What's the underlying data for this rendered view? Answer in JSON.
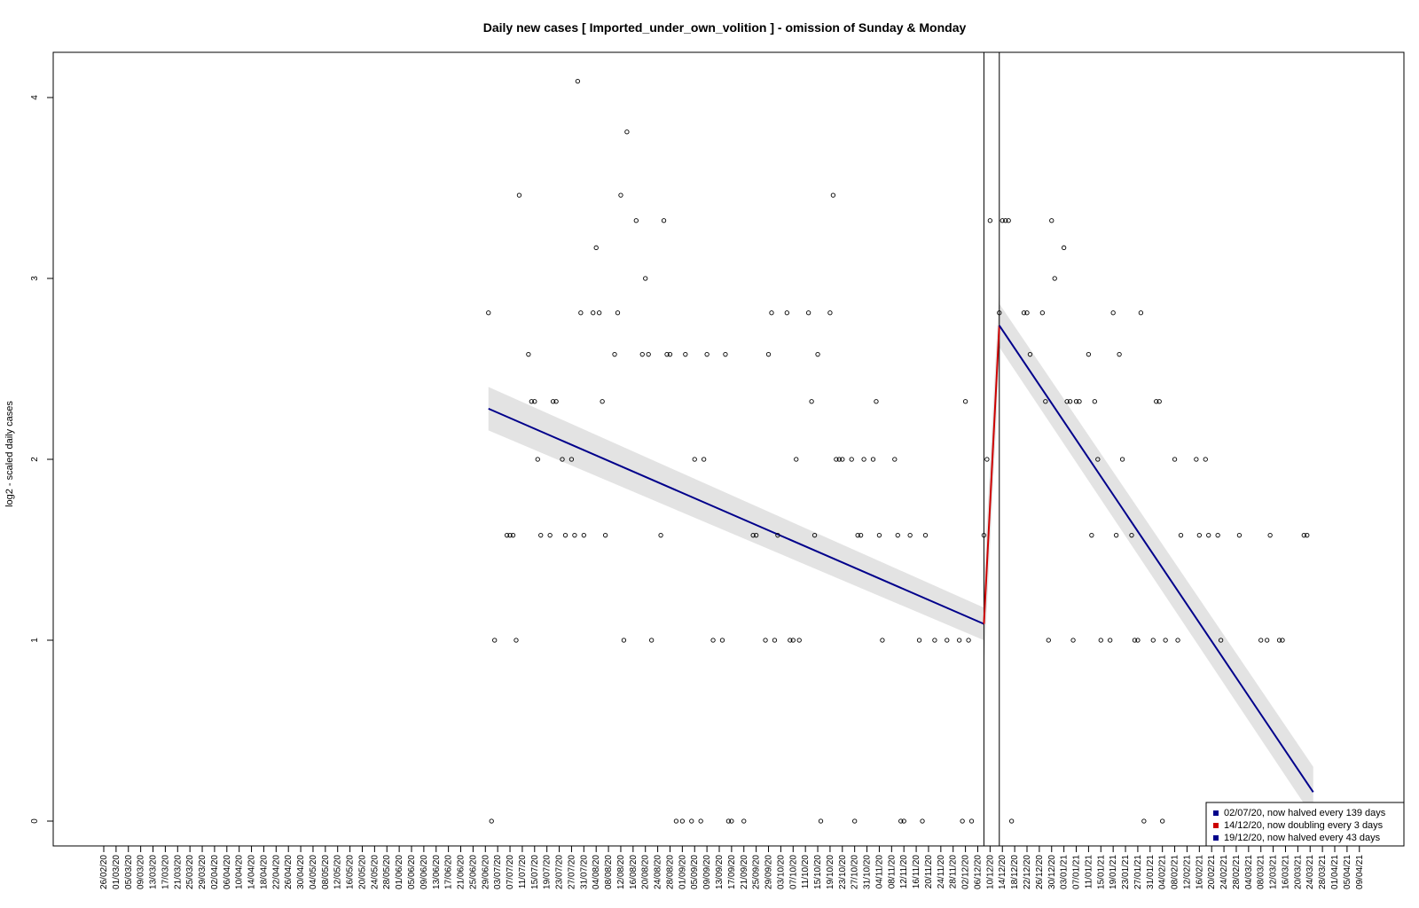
{
  "chart_data": {
    "type": "scatter",
    "title": "Daily new cases [ Imported_under_own_volition ] - omission of Sunday & Monday",
    "xlabel": "",
    "ylabel": "log2 - scaled daily cases",
    "ylim": [
      0,
      4
    ],
    "yticks": [
      "0",
      "1",
      "2",
      "3",
      "4"
    ],
    "x_tick_labels": [
      "26/02/20",
      "01/03/20",
      "05/03/20",
      "09/03/20",
      "13/03/20",
      "17/03/20",
      "21/03/20",
      "25/03/20",
      "29/03/20",
      "02/04/20",
      "06/04/20",
      "10/04/20",
      "14/04/20",
      "18/04/20",
      "22/04/20",
      "26/04/20",
      "30/04/20",
      "04/05/20",
      "08/05/20",
      "12/05/20",
      "16/05/20",
      "20/05/20",
      "24/05/20",
      "28/05/20",
      "01/06/20",
      "05/06/20",
      "09/06/20",
      "13/06/20",
      "17/06/20",
      "21/06/20",
      "25/06/20",
      "29/06/20",
      "03/07/20",
      "07/07/20",
      "11/07/20",
      "15/07/20",
      "19/07/20",
      "23/07/20",
      "27/07/20",
      "31/07/20",
      "04/08/20",
      "08/08/20",
      "12/08/20",
      "16/08/20",
      "20/08/20",
      "24/08/20",
      "28/08/20",
      "01/09/20",
      "05/09/20",
      "09/09/20",
      "13/09/20",
      "17/09/20",
      "21/09/20",
      "25/09/20",
      "29/09/20",
      "03/10/20",
      "07/10/20",
      "11/10/20",
      "15/10/20",
      "19/10/20",
      "23/10/20",
      "27/10/20",
      "31/10/20",
      "04/11/20",
      "08/11/20",
      "12/11/20",
      "16/11/20",
      "20/11/20",
      "24/11/20",
      "28/11/20",
      "02/12/20",
      "06/12/20",
      "10/12/20",
      "14/12/20",
      "18/12/20",
      "22/12/20",
      "26/12/20",
      "30/12/20",
      "03/01/21",
      "07/01/21",
      "11/01/21",
      "15/01/21",
      "19/01/21",
      "23/01/21",
      "27/01/21",
      "31/01/21",
      "04/02/21",
      "08/02/21",
      "12/02/21",
      "16/02/21",
      "20/02/21",
      "24/02/21",
      "28/02/21",
      "04/03/21",
      "08/03/21",
      "12/03/21",
      "16/03/21",
      "20/03/21",
      "24/03/21",
      "28/03/21",
      "01/04/21",
      "05/04/21",
      "09/04/21"
    ],
    "points": [
      [
        125,
        2.81
      ],
      [
        126,
        0
      ],
      [
        127,
        1
      ],
      [
        131,
        1.58
      ],
      [
        132,
        1.58
      ],
      [
        133,
        1.58
      ],
      [
        134,
        1
      ],
      [
        135,
        3.46
      ],
      [
        138,
        2.58
      ],
      [
        139,
        2.32
      ],
      [
        140,
        2.32
      ],
      [
        141,
        2
      ],
      [
        142,
        1.58
      ],
      [
        145,
        1.58
      ],
      [
        146,
        2.32
      ],
      [
        147,
        2.32
      ],
      [
        149,
        2
      ],
      [
        150,
        1.58
      ],
      [
        152,
        2
      ],
      [
        153,
        1.58
      ],
      [
        154,
        4.09
      ],
      [
        155,
        2.81
      ],
      [
        156,
        1.58
      ],
      [
        159,
        2.81
      ],
      [
        160,
        3.17
      ],
      [
        161,
        2.81
      ],
      [
        162,
        2.32
      ],
      [
        163,
        1.58
      ],
      [
        166,
        2.58
      ],
      [
        167,
        2.81
      ],
      [
        168,
        3.46
      ],
      [
        169,
        1
      ],
      [
        170,
        3.81
      ],
      [
        173,
        3.32
      ],
      [
        175,
        2.58
      ],
      [
        176,
        3
      ],
      [
        177,
        2.58
      ],
      [
        178,
        1
      ],
      [
        181,
        1.58
      ],
      [
        182,
        3.32
      ],
      [
        183,
        2.58
      ],
      [
        184,
        2.58
      ],
      [
        186,
        0
      ],
      [
        188,
        0
      ],
      [
        189,
        2.58
      ],
      [
        191,
        0
      ],
      [
        192,
        2
      ],
      [
        194,
        0
      ],
      [
        195,
        2
      ],
      [
        196,
        2.58
      ],
      [
        198,
        1
      ],
      [
        201,
        1
      ],
      [
        202,
        2.58
      ],
      [
        203,
        0
      ],
      [
        204,
        0
      ],
      [
        208,
        0
      ],
      [
        211,
        1.58
      ],
      [
        212,
        1.58
      ],
      [
        215,
        1
      ],
      [
        216,
        2.58
      ],
      [
        217,
        2.81
      ],
      [
        218,
        1
      ],
      [
        219,
        1.58
      ],
      [
        222,
        2.81
      ],
      [
        223,
        1
      ],
      [
        224,
        1
      ],
      [
        225,
        2
      ],
      [
        226,
        1
      ],
      [
        229,
        2.81
      ],
      [
        230,
        2.32
      ],
      [
        231,
        1.58
      ],
      [
        232,
        2.58
      ],
      [
        233,
        0
      ],
      [
        236,
        2.81
      ],
      [
        237,
        3.46
      ],
      [
        238,
        2
      ],
      [
        239,
        2
      ],
      [
        240,
        2
      ],
      [
        243,
        2
      ],
      [
        244,
        0
      ],
      [
        245,
        1.58
      ],
      [
        246,
        1.58
      ],
      [
        247,
        2
      ],
      [
        250,
        2
      ],
      [
        251,
        2.32
      ],
      [
        252,
        1.58
      ],
      [
        253,
        1
      ],
      [
        257,
        2
      ],
      [
        258,
        1.58
      ],
      [
        259,
        0
      ],
      [
        260,
        0
      ],
      [
        262,
        1.58
      ],
      [
        265,
        1
      ],
      [
        266,
        0
      ],
      [
        267,
        1.58
      ],
      [
        270,
        1
      ],
      [
        274,
        1
      ],
      [
        278,
        1
      ],
      [
        279,
        0
      ],
      [
        280,
        2.32
      ],
      [
        281,
        1
      ],
      [
        282,
        0
      ],
      [
        286,
        1.58
      ],
      [
        287,
        2
      ],
      [
        288,
        3.32
      ],
      [
        291,
        2.81
      ],
      [
        292,
        3.32
      ],
      [
        293,
        3.32
      ],
      [
        294,
        3.32
      ],
      [
        295,
        0
      ],
      [
        299,
        2.81
      ],
      [
        300,
        2.81
      ],
      [
        301,
        2.58
      ],
      [
        305,
        2.81
      ],
      [
        306,
        2.32
      ],
      [
        307,
        1
      ],
      [
        308,
        3.32
      ],
      [
        309,
        3
      ],
      [
        312,
        3.17
      ],
      [
        313,
        2.32
      ],
      [
        314,
        2.32
      ],
      [
        315,
        1
      ],
      [
        316,
        2.32
      ],
      [
        317,
        2.32
      ],
      [
        320,
        2.58
      ],
      [
        321,
        1.58
      ],
      [
        322,
        2.32
      ],
      [
        323,
        2
      ],
      [
        324,
        1
      ],
      [
        327,
        1
      ],
      [
        328,
        2.81
      ],
      [
        329,
        1.58
      ],
      [
        330,
        2.58
      ],
      [
        331,
        2
      ],
      [
        334,
        1.58
      ],
      [
        335,
        1
      ],
      [
        336,
        1
      ],
      [
        337,
        2.81
      ],
      [
        338,
        0
      ],
      [
        341,
        1
      ],
      [
        342,
        2.32
      ],
      [
        343,
        2.32
      ],
      [
        344,
        0
      ],
      [
        345,
        1
      ],
      [
        348,
        2
      ],
      [
        349,
        1
      ],
      [
        350,
        1.58
      ],
      [
        355,
        2
      ],
      [
        356,
        1.58
      ],
      [
        358,
        2
      ],
      [
        359,
        1.58
      ],
      [
        362,
        1.58
      ],
      [
        363,
        1
      ],
      [
        369,
        1.58
      ],
      [
        376,
        1
      ],
      [
        378,
        1
      ],
      [
        379,
        1.58
      ],
      [
        382,
        1
      ],
      [
        383,
        1
      ],
      [
        390,
        1.58
      ],
      [
        391,
        1.58
      ]
    ],
    "series": [
      {
        "name": "02/07/20, now halved every 139 days",
        "color": "#00008B",
        "x": [
          125,
          286
        ],
        "y": [
          2.28,
          1.09
        ],
        "ci_halfwidth": [
          0.12,
          0.09
        ]
      },
      {
        "name": "14/12/20, now doubling every 3 days",
        "color": "#CC0000",
        "x": [
          286,
          291
        ],
        "y": [
          1.09,
          2.74
        ],
        "ci_halfwidth": [
          0.25,
          0.2
        ]
      },
      {
        "name": "19/12/20, now halved every 43 days",
        "color": "#00008B",
        "x": [
          291,
          393
        ],
        "y": [
          2.74,
          0.16
        ],
        "ci_halfwidth": [
          0.12,
          0.14
        ]
      }
    ],
    "vertical_lines_x": [
      286,
      291
    ],
    "x_range": [
      0,
      400
    ],
    "legend_position": "bottom-right"
  }
}
